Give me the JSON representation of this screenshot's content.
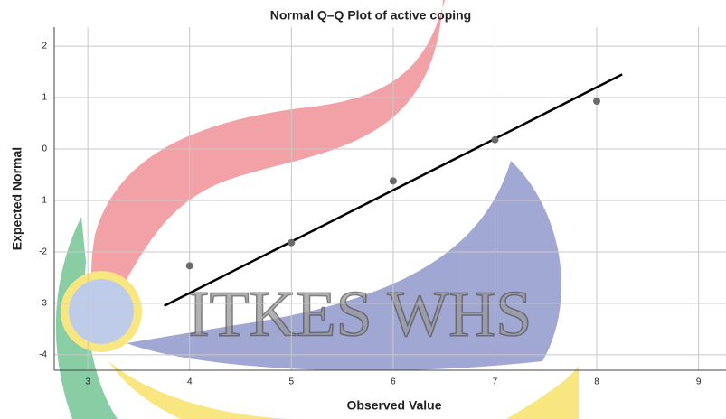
{
  "chart_data": {
    "type": "scatter",
    "title": "Normal Q–Q Plot of active coping",
    "x_label": "Observed Value",
    "y_label": "Expected Normal",
    "x": [
      4,
      5,
      6,
      7,
      8
    ],
    "y": [
      -2.27,
      -1.82,
      -0.62,
      0.18,
      0.93
    ],
    "color": "#6b6b6b",
    "reference_line": {
      "x": [
        3.75,
        8.25
      ],
      "y": [
        -3.05,
        1.45
      ],
      "color": "#000000"
    },
    "xlim": [
      2.67,
      9.27
    ],
    "xticks": [
      3,
      4,
      5,
      6,
      7,
      8,
      9
    ],
    "ylim": [
      -4.3,
      2.37
    ],
    "yticks": [
      -4,
      -3,
      -2,
      -1,
      0,
      1,
      2
    ],
    "grid": true,
    "watermark": "ITKES WHS"
  }
}
